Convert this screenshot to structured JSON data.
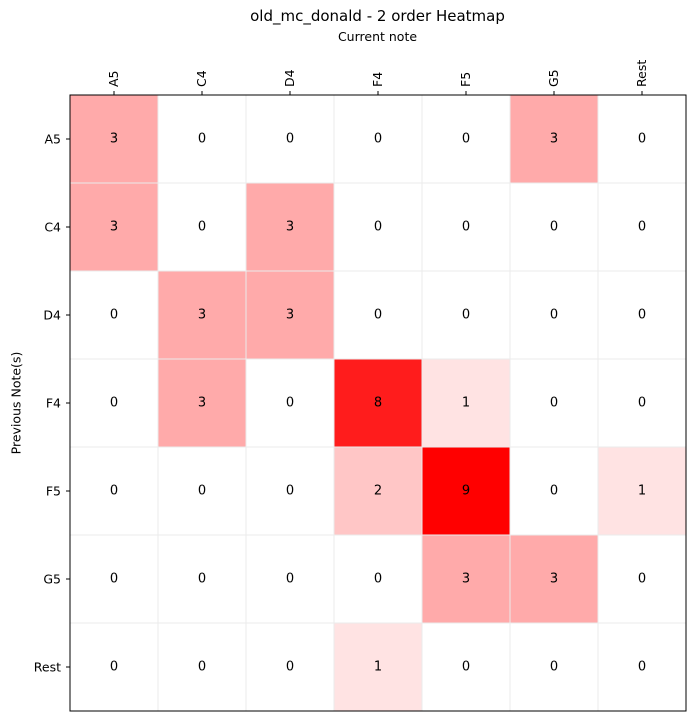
{
  "chart_data": {
    "type": "heatmap",
    "title": "old_mc_donald - 2 order Heatmap",
    "xlabel": "Current note",
    "ylabel": "Previous Note(s)",
    "x_categories": [
      "A5",
      "C4",
      "D4",
      "F4",
      "F5",
      "G5",
      "Rest"
    ],
    "y_categories": [
      "A5",
      "C4",
      "D4",
      "F4",
      "F5",
      "G5",
      "Rest"
    ],
    "values": [
      [
        3,
        0,
        0,
        0,
        0,
        3,
        0
      ],
      [
        3,
        0,
        3,
        0,
        0,
        0,
        0
      ],
      [
        0,
        3,
        3,
        0,
        0,
        0,
        0
      ],
      [
        0,
        3,
        0,
        8,
        1,
        0,
        0
      ],
      [
        0,
        0,
        0,
        2,
        9,
        0,
        1
      ],
      [
        0,
        0,
        0,
        0,
        3,
        3,
        0
      ],
      [
        0,
        0,
        0,
        1,
        0,
        0,
        0
      ]
    ],
    "color_range": [
      0,
      9
    ],
    "colormap": {
      "low": "#ffffff",
      "high": "#ff0000"
    },
    "x_ticks_position": "top",
    "x_tick_rotation": "vertical",
    "grid": true
  }
}
